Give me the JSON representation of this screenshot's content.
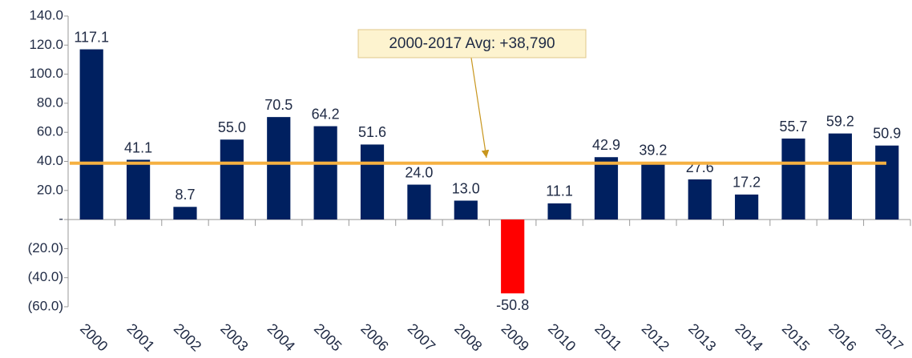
{
  "chart_data": {
    "type": "bar",
    "categories": [
      "2000",
      "2001",
      "2002",
      "2003",
      "2004",
      "2005",
      "2006",
      "2007",
      "2008",
      "2009",
      "2010",
      "2011",
      "2012",
      "2013",
      "2014",
      "2015",
      "2016",
      "2017"
    ],
    "values": [
      117.1,
      41.1,
      8.7,
      55.0,
      70.5,
      64.2,
      51.6,
      24.0,
      13.0,
      -50.8,
      11.1,
      42.9,
      39.2,
      27.6,
      17.2,
      55.7,
      59.2,
      50.9
    ],
    "value_labels": [
      "117.1",
      "41.1",
      "8.7",
      "55.0",
      "70.5",
      "64.2",
      "51.6",
      "24.0",
      "13.0",
      "-50.8",
      "11.1",
      "42.9",
      "39.2",
      "27.6",
      "17.2",
      "55.7",
      "59.2",
      "50.9"
    ],
    "color": "#002060",
    "negative_color": "#ff0000",
    "average": 38.79,
    "average_color": "#f5b041",
    "annotation": "2000-2017 Avg: +38,790",
    "ylim": [
      -60,
      140
    ],
    "yticks": [
      {
        "value": -60,
        "label": "(60.0)"
      },
      {
        "value": -40,
        "label": "(40.0)"
      },
      {
        "value": -20,
        "label": "(20.0)"
      },
      {
        "value": 0,
        "label": "-"
      },
      {
        "value": 20,
        "label": "20.0"
      },
      {
        "value": 40,
        "label": "40.0"
      },
      {
        "value": 60,
        "label": "60.0"
      },
      {
        "value": 80,
        "label": "80.0"
      },
      {
        "value": 100,
        "label": "100.0"
      },
      {
        "value": 120,
        "label": "120.0"
      },
      {
        "value": 140,
        "label": "140.0"
      }
    ],
    "grid": false
  }
}
